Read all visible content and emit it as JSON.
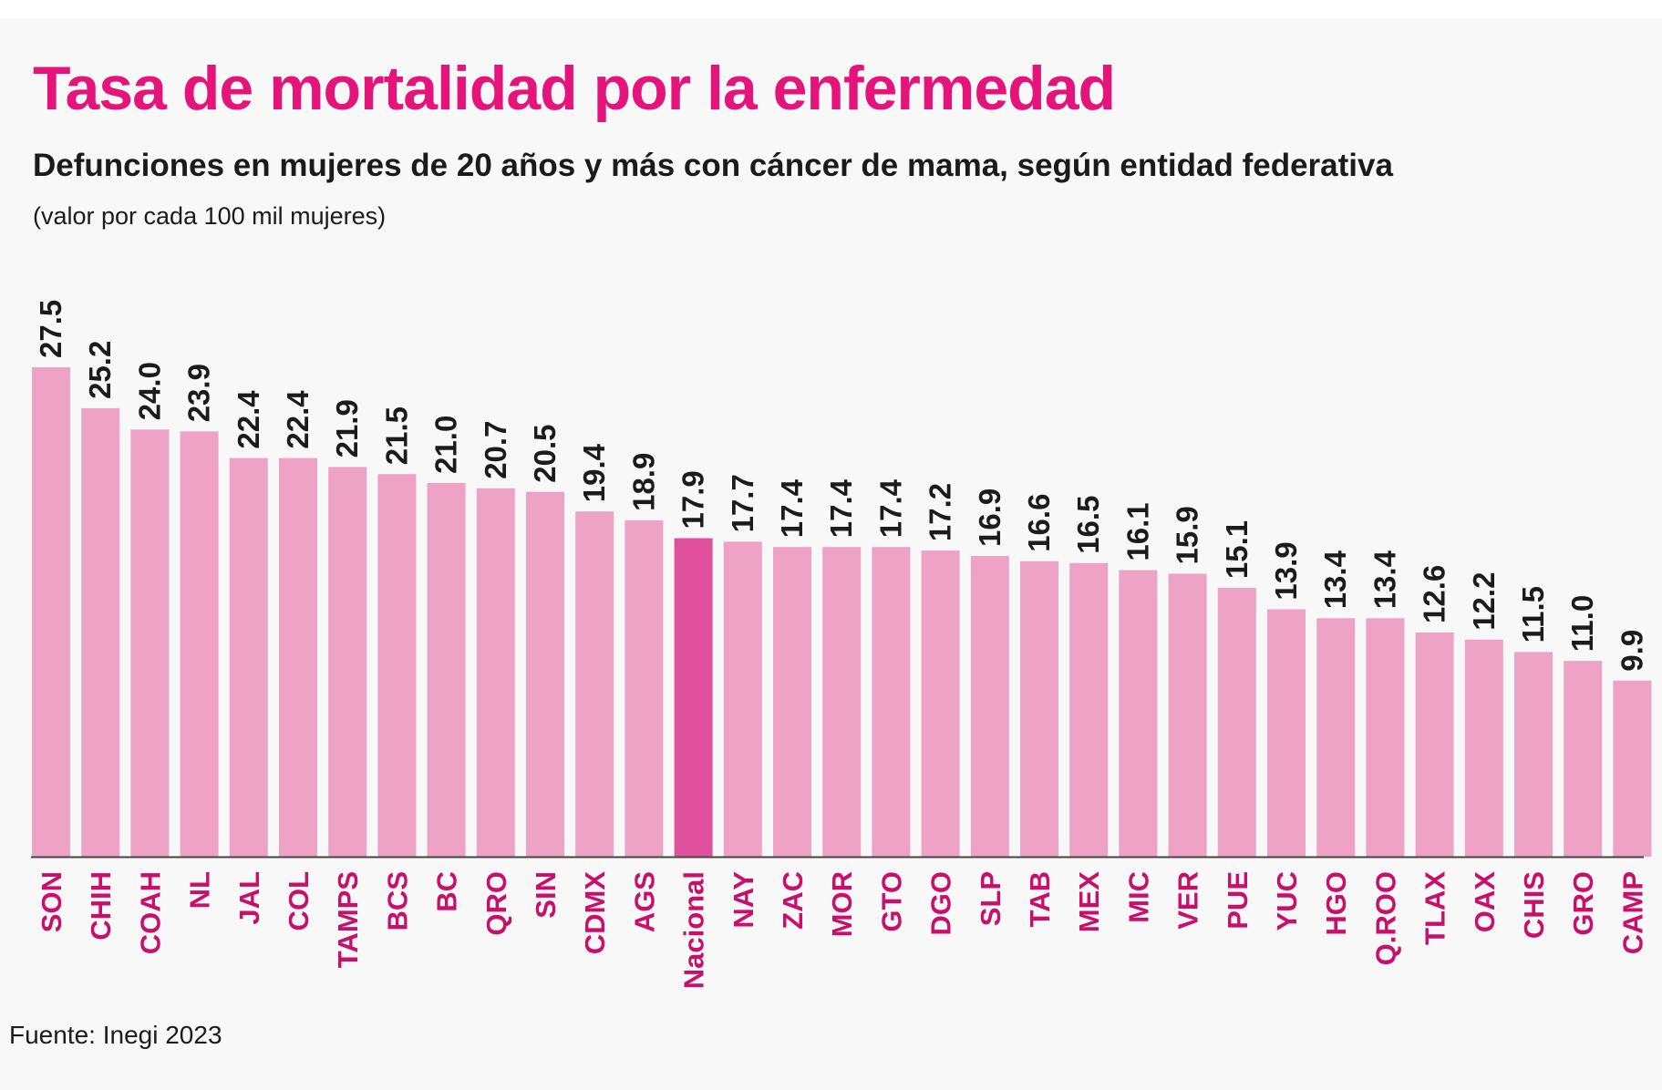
{
  "header": {
    "title": "Tasa de mortalidad por la enfermedad",
    "subtitle": "Defunciones en mujeres de 20 años y más con cáncer de mama, según entidad federativa",
    "note": "(valor por cada 100 mil mujeres)"
  },
  "footer": {
    "source": "Fuente: Inegi 2023"
  },
  "colors": {
    "bar": "#eea2c4",
    "highlight_bar": "#e0509a",
    "label": "#c8106b",
    "title": "#e4147a",
    "value_text": "#1b1b1b",
    "axis": "#444444"
  },
  "chart_data": {
    "type": "bar",
    "orientation": "vertical",
    "categories": [
      "SON",
      "CHIH",
      "COAH",
      "NL",
      "JAL",
      "COL",
      "TAMPS",
      "BCS",
      "BC",
      "QRO",
      "SIN",
      "CDMX",
      "AGS",
      "Nacional",
      "NAY",
      "ZAC",
      "MOR",
      "GTO",
      "DGO",
      "SLP",
      "TAB",
      "MEX",
      "MIC",
      "VER",
      "PUE",
      "YUC",
      "HGO",
      "Q.ROO",
      "TLAX",
      "OAX",
      "CHIS",
      "GRO",
      "CAMP"
    ],
    "values": [
      27.5,
      25.2,
      24.0,
      23.9,
      22.4,
      22.4,
      21.9,
      21.5,
      21.0,
      20.7,
      20.5,
      19.4,
      18.9,
      17.9,
      17.7,
      17.4,
      17.4,
      17.4,
      17.2,
      16.9,
      16.6,
      16.5,
      16.1,
      15.9,
      15.1,
      13.9,
      13.4,
      13.4,
      12.6,
      12.2,
      11.5,
      11.0,
      9.9
    ],
    "value_labels": [
      "27.5",
      "25.2",
      "24.0",
      "23.9",
      "22.4",
      "22.4",
      "21.9",
      "21.5",
      "21.0",
      "20.7",
      "20.5",
      "19.4",
      "18.9",
      "17.9",
      "17.7",
      "17.4",
      "17.4",
      "17.4",
      "17.2",
      "16.9",
      "16.6",
      "16.5",
      "16.1",
      "15.9",
      "15.1",
      "13.9",
      "13.4",
      "13.4",
      "12.6",
      "12.2",
      "11.5",
      "11.0",
      "9.9"
    ],
    "highlight": "Nacional",
    "ylim": [
      0,
      27.5
    ],
    "grid": false,
    "legend": "none"
  }
}
